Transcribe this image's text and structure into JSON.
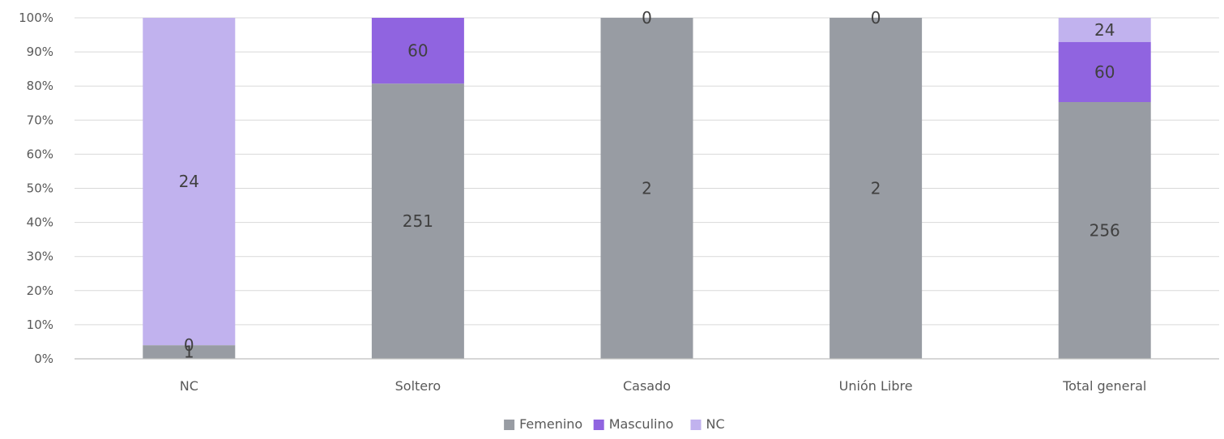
{
  "chart_data": {
    "type": "bar",
    "stacked": "percent",
    "title": "",
    "xlabel": "",
    "ylabel": "",
    "ylim": [
      0,
      100
    ],
    "yticks": [
      "0%",
      "10%",
      "20%",
      "30%",
      "40%",
      "50%",
      "60%",
      "70%",
      "80%",
      "90%",
      "100%"
    ],
    "categories": [
      "NC",
      "Soltero",
      "Casado",
      "Unión Libre",
      "Total general"
    ],
    "series": [
      {
        "name": "Femenino",
        "color": "#989ca3",
        "values": [
          1,
          251,
          2,
          2,
          256
        ]
      },
      {
        "name": "Masculino",
        "color": "#9064e0",
        "values": [
          0,
          60,
          0,
          0,
          60
        ]
      },
      {
        "name": "NC",
        "color": "#c1b2ee",
        "values": [
          24,
          0,
          0,
          0,
          24
        ]
      }
    ],
    "grid": true,
    "legend_position": "bottom"
  }
}
